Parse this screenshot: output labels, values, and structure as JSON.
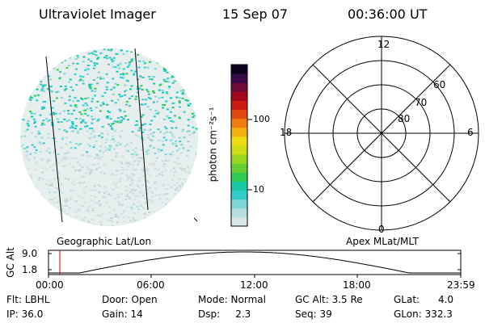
{
  "header": {
    "instrument": "Ultraviolet Imager",
    "date": "15 Sep 07",
    "time": "00:36:00 UT"
  },
  "colorbar": {
    "unit_label": "photon cm⁻²s⁻¹",
    "ticks": [
      "100",
      "10"
    ],
    "colors": [
      "#d9e6e6",
      "#b5dede",
      "#7fd6d6",
      "#33cccc",
      "#18c9a8",
      "#2ecc55",
      "#66d033",
      "#99d61e",
      "#ccdd12",
      "#eedd10",
      "#f5b010",
      "#f07d10",
      "#e04a10",
      "#cc1a10",
      "#a00a1a",
      "#6e0a38",
      "#3a0a4a",
      "#0d0320"
    ]
  },
  "panels": {
    "left_label": "Geographic Lat/Lon",
    "right_label": "Apex MLat/MLT"
  },
  "polar": {
    "mlt_labels": {
      "top": "12",
      "left": "18",
      "right": "6",
      "bottom": "0"
    },
    "lat_labels": [
      "60",
      "70",
      "80"
    ]
  },
  "altitude_plot": {
    "y_title": "GC Alt",
    "y_ticks": [
      "9.0",
      "1.8"
    ],
    "x_ticks": [
      "00:00",
      "06:00",
      "12:00",
      "18:00",
      "23:59"
    ]
  },
  "info": {
    "flt": "Flt: LBHL",
    "ip": "IP: 36.0",
    "door": "Door: Open",
    "gain": "Gain: 14",
    "mode": "Mode: Normal",
    "dsp": "Dsp:     2.3",
    "gc_alt": "GC Alt: 3.5 Re",
    "seq": "Seq: 39",
    "glat": "GLat:      4.0",
    "glon": "GLon: 332.3"
  }
}
